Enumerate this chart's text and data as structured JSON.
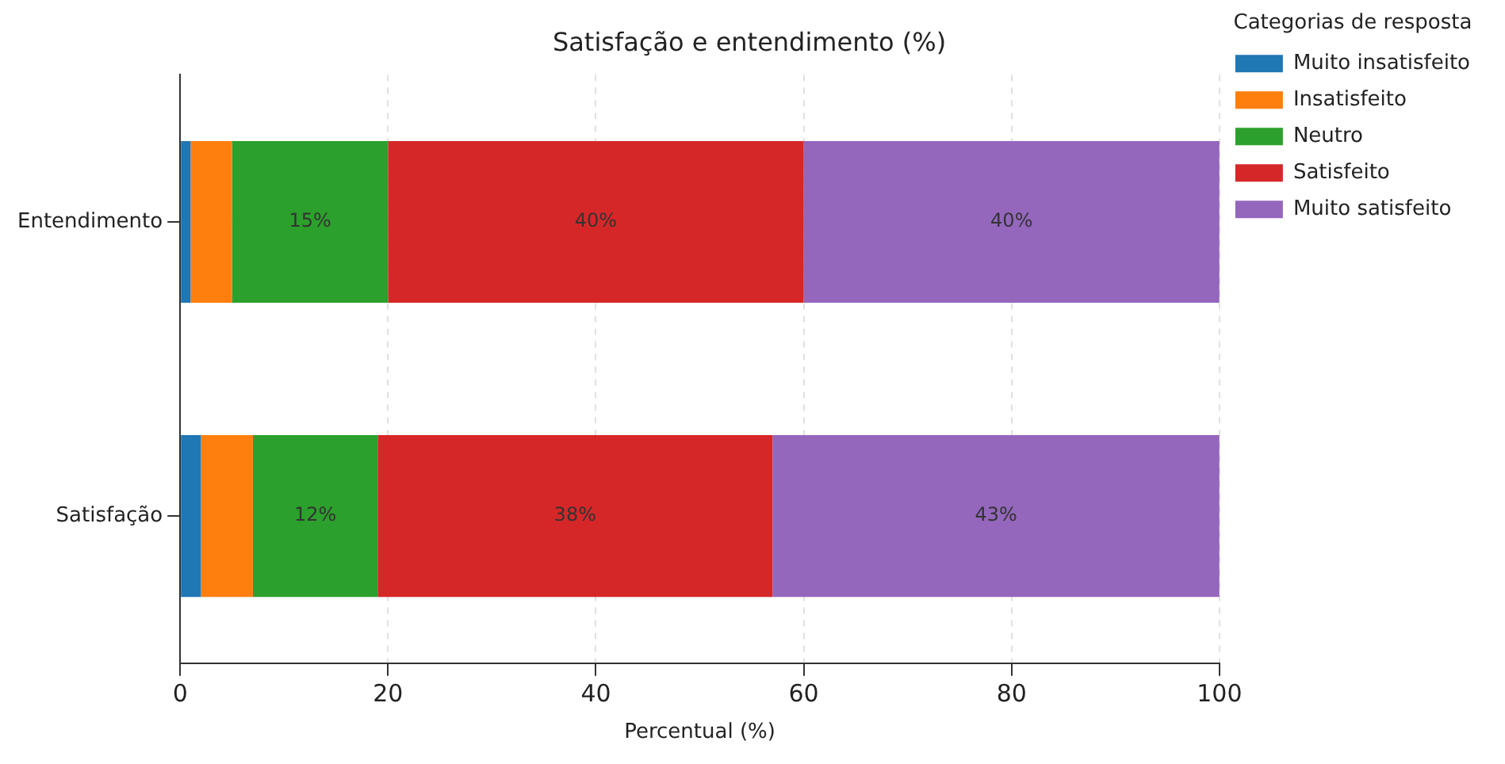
{
  "chart_data": {
    "type": "bar",
    "orientation": "horizontal",
    "stacked": true,
    "title": "Satisfação e entendimento (%)",
    "xlabel": "Percentual (%)",
    "legend_title": "Categorias de resposta",
    "legend": "right",
    "grid": true,
    "categories": [
      "Entendimento",
      "Satisfação"
    ],
    "xlim": [
      0,
      100
    ],
    "xticks": [
      0,
      20,
      40,
      60,
      80,
      100
    ],
    "series": [
      {
        "name": "Muito insatisfeito",
        "color": "#1f77b4",
        "values": [
          1,
          2
        ],
        "value_labels": [
          null,
          null
        ]
      },
      {
        "name": "Insatisfeito",
        "color": "#ff7f0e",
        "values": [
          4,
          5
        ],
        "value_labels": [
          null,
          null
        ]
      },
      {
        "name": "Neutro",
        "color": "#2ca02c",
        "values": [
          15,
          12
        ],
        "value_labels": [
          "15%",
          "12%"
        ]
      },
      {
        "name": "Satisfeito",
        "color": "#d62728",
        "values": [
          40,
          38
        ],
        "value_labels": [
          "40%",
          "38%"
        ]
      },
      {
        "name": "Muito satisfeito",
        "color": "#9467bd",
        "values": [
          40,
          43
        ],
        "value_labels": [
          "40%",
          "43%"
        ]
      }
    ]
  }
}
